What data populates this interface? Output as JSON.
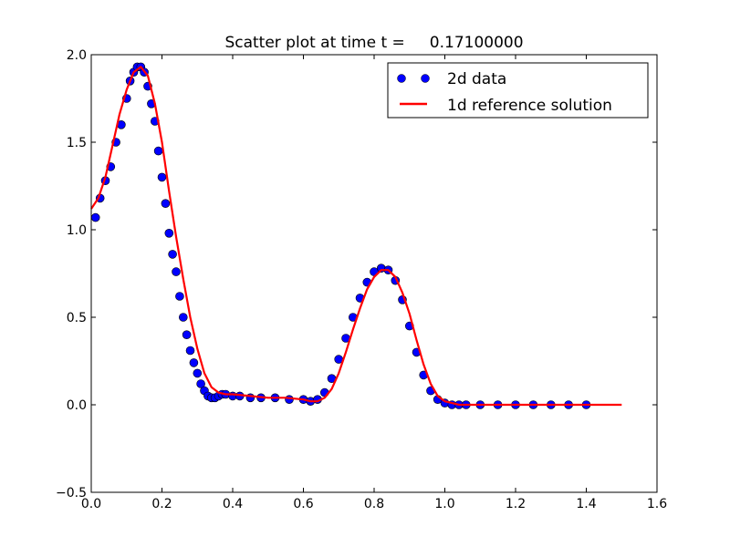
{
  "chart_data": {
    "type": "scatter",
    "title": "Scatter plot at time t =     0.17100000",
    "xlim": [
      0.0,
      1.6
    ],
    "ylim": [
      -0.5,
      2.0
    ],
    "xticks": [
      "0.0",
      "0.2",
      "0.4",
      "0.6",
      "0.8",
      "1.0",
      "1.2",
      "1.4",
      "1.6"
    ],
    "yticks": [
      "−0.5",
      "0.0",
      "0.5",
      "1.0",
      "1.5",
      "2.0"
    ],
    "grid": false,
    "legend_position": "top-right",
    "series": [
      {
        "name": "2d data",
        "kind": "scatter",
        "color": "#0000ff",
        "edge_color": "#000000",
        "x": [
          0.012,
          0.025,
          0.04,
          0.055,
          0.07,
          0.085,
          0.1,
          0.11,
          0.12,
          0.13,
          0.14,
          0.15,
          0.16,
          0.17,
          0.18,
          0.19,
          0.2,
          0.21,
          0.22,
          0.23,
          0.24,
          0.25,
          0.26,
          0.27,
          0.28,
          0.29,
          0.3,
          0.31,
          0.32,
          0.33,
          0.34,
          0.35,
          0.36,
          0.37,
          0.38,
          0.4,
          0.42,
          0.45,
          0.48,
          0.52,
          0.56,
          0.6,
          0.62,
          0.64,
          0.66,
          0.68,
          0.7,
          0.72,
          0.74,
          0.76,
          0.78,
          0.8,
          0.82,
          0.84,
          0.86,
          0.88,
          0.9,
          0.92,
          0.94,
          0.96,
          0.98,
          1.0,
          1.02,
          1.04,
          1.06,
          1.1,
          1.15,
          1.2,
          1.25,
          1.3,
          1.35,
          1.4
        ],
        "y": [
          1.07,
          1.18,
          1.28,
          1.36,
          1.5,
          1.6,
          1.75,
          1.85,
          1.9,
          1.93,
          1.93,
          1.9,
          1.82,
          1.72,
          1.62,
          1.45,
          1.3,
          1.15,
          0.98,
          0.86,
          0.76,
          0.62,
          0.5,
          0.4,
          0.31,
          0.24,
          0.18,
          0.12,
          0.08,
          0.05,
          0.04,
          0.04,
          0.05,
          0.06,
          0.06,
          0.05,
          0.05,
          0.04,
          0.04,
          0.04,
          0.03,
          0.03,
          0.02,
          0.03,
          0.07,
          0.15,
          0.26,
          0.38,
          0.5,
          0.61,
          0.7,
          0.76,
          0.78,
          0.77,
          0.71,
          0.6,
          0.45,
          0.3,
          0.17,
          0.08,
          0.03,
          0.01,
          0.0,
          0.0,
          0.0,
          0.0,
          0.0,
          0.0,
          0.0,
          0.0,
          0.0,
          0.0
        ]
      },
      {
        "name": "1d reference solution",
        "kind": "line",
        "color": "#ff0000",
        "x": [
          0.0,
          0.02,
          0.04,
          0.06,
          0.08,
          0.1,
          0.12,
          0.14,
          0.16,
          0.18,
          0.2,
          0.22,
          0.24,
          0.26,
          0.28,
          0.3,
          0.32,
          0.34,
          0.36,
          0.38,
          0.4,
          0.45,
          0.5,
          0.55,
          0.6,
          0.62,
          0.64,
          0.66,
          0.68,
          0.7,
          0.72,
          0.74,
          0.76,
          0.78,
          0.8,
          0.82,
          0.84,
          0.86,
          0.88,
          0.9,
          0.92,
          0.94,
          0.96,
          0.98,
          1.0,
          1.02,
          1.04,
          1.06,
          1.1,
          1.2,
          1.3,
          1.4,
          1.5
        ],
        "y": [
          1.12,
          1.18,
          1.3,
          1.48,
          1.66,
          1.8,
          1.9,
          1.93,
          1.88,
          1.72,
          1.5,
          1.22,
          0.96,
          0.72,
          0.5,
          0.32,
          0.18,
          0.1,
          0.07,
          0.06,
          0.06,
          0.05,
          0.04,
          0.04,
          0.03,
          0.02,
          0.02,
          0.04,
          0.09,
          0.18,
          0.3,
          0.43,
          0.55,
          0.66,
          0.73,
          0.77,
          0.77,
          0.73,
          0.64,
          0.52,
          0.37,
          0.23,
          0.12,
          0.05,
          0.02,
          0.01,
          0.0,
          0.0,
          0.0,
          0.0,
          0.0,
          0.0,
          0.0
        ]
      }
    ]
  }
}
